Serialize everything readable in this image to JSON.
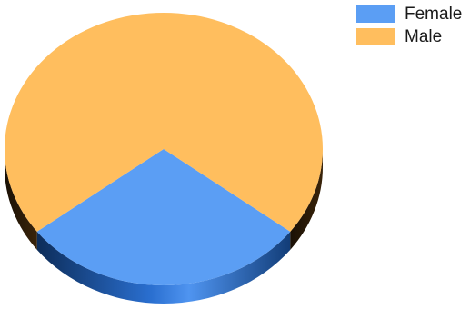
{
  "chart_data": {
    "type": "pie",
    "title": "",
    "series": [
      {
        "name": "Female",
        "value": 29.3,
        "color": "#5b9ef4"
      },
      {
        "name": "Male",
        "value": 70.7,
        "color": "#ffbe5e"
      }
    ],
    "legend_position": "top-right",
    "style": "3d"
  }
}
